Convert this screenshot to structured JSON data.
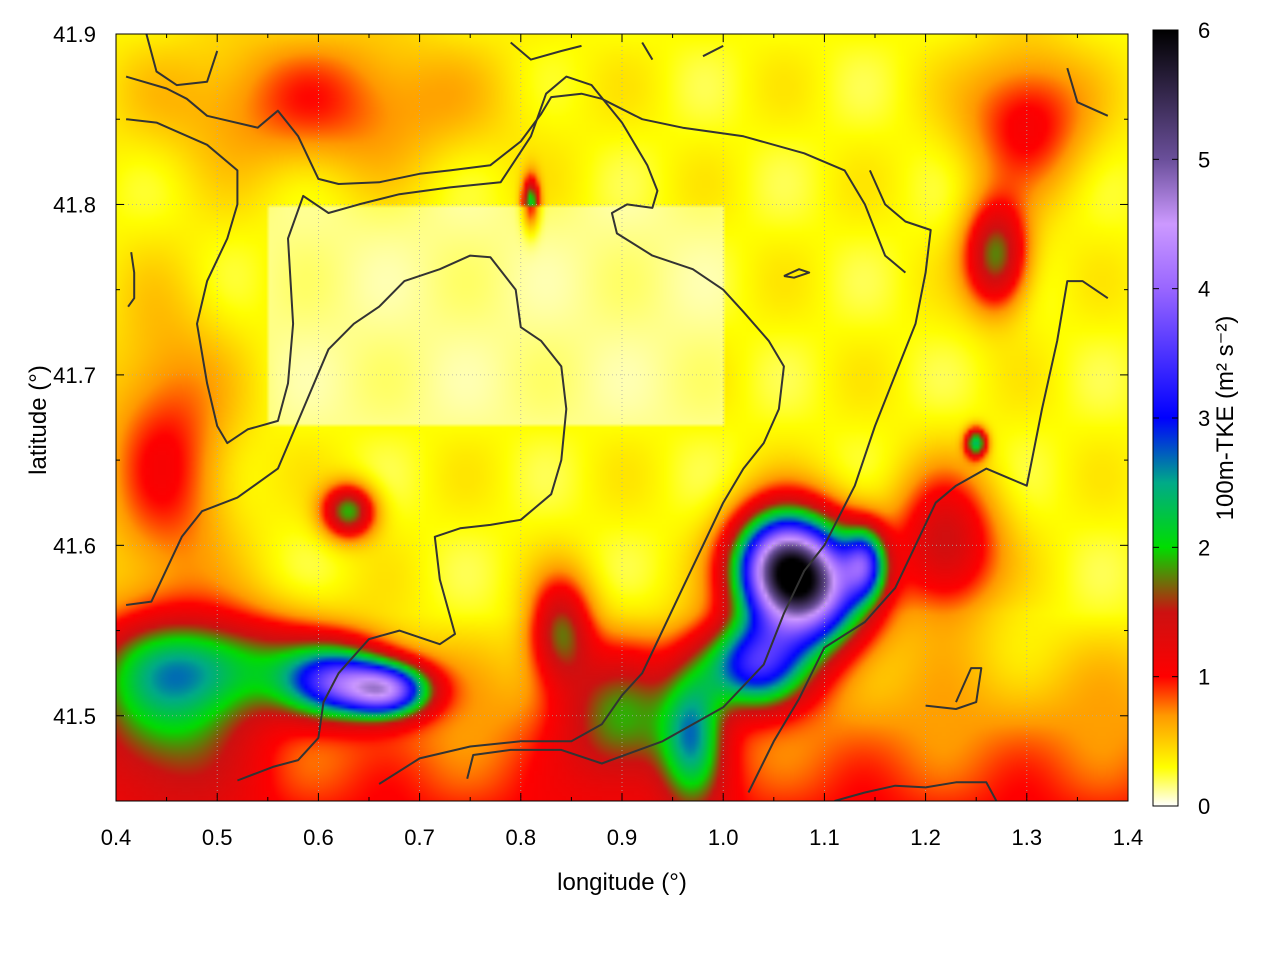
{
  "chart_data": {
    "type": "heatmap",
    "title": "",
    "xlabel": "longitude (°)",
    "ylabel": "latitude (°)",
    "colorbar_label": "100m-TKE (m² s⁻²)",
    "xlim": [
      0.4,
      1.4
    ],
    "ylim": [
      41.45,
      41.9
    ],
    "x_ticks": [
      0.4,
      0.5,
      0.6,
      0.7,
      0.8,
      0.9,
      1.0,
      1.1,
      1.2,
      1.3,
      1.4
    ],
    "x_tick_labels": [
      "0.4",
      "0.5",
      "0.6",
      "0.7",
      "0.8",
      "0.9",
      "1.0",
      "1.1",
      "1.2",
      "1.3",
      "1.4"
    ],
    "y_ticks": [
      41.5,
      41.6,
      41.7,
      41.8,
      41.9
    ],
    "y_tick_labels": [
      "41.5",
      "41.6",
      "41.7",
      "41.8",
      "41.9"
    ],
    "color_range": [
      0,
      6
    ],
    "cb_ticks": [
      0,
      1,
      2,
      3,
      4,
      5,
      6
    ],
    "cb_tick_labels": [
      "0",
      "1",
      "2",
      "3",
      "4",
      "5",
      "6"
    ],
    "colorscale": [
      [
        0.0,
        "#ffffff"
      ],
      [
        0.3,
        "#ffff00"
      ],
      [
        0.7,
        "#ff9900"
      ],
      [
        1.0,
        "#ff0000"
      ],
      [
        1.5,
        "#cc1111"
      ],
      [
        2.0,
        "#00dd00"
      ],
      [
        2.5,
        "#00aa88"
      ],
      [
        3.0,
        "#0000ff"
      ],
      [
        4.0,
        "#9966ff"
      ],
      [
        4.5,
        "#cc99ff"
      ],
      [
        5.0,
        "#6a4f9a"
      ],
      [
        6.0,
        "#000000"
      ]
    ],
    "grid": true,
    "grid_style": "dotted",
    "contour_color": "#333333",
    "field_features": [
      {
        "lon": 1.085,
        "lat": 41.575,
        "value": 4.2,
        "width": 0.055,
        "height": 0.035
      },
      {
        "lon": 1.055,
        "lat": 41.59,
        "value": 3.0,
        "width": 0.045,
        "height": 0.03
      },
      {
        "lon": 0.67,
        "lat": 41.515,
        "value": 3.0,
        "width": 0.04,
        "height": 0.015
      },
      {
        "lon": 0.62,
        "lat": 41.52,
        "value": 2.5,
        "width": 0.05,
        "height": 0.02
      },
      {
        "lon": 1.03,
        "lat": 41.53,
        "value": 2.6,
        "width": 0.05,
        "height": 0.025
      },
      {
        "lon": 1.14,
        "lat": 41.59,
        "value": 2.0,
        "width": 0.02,
        "height": 0.02
      },
      {
        "lon": 0.5,
        "lat": 41.53,
        "value": 1.4,
        "width": 0.12,
        "height": 0.03
      },
      {
        "lon": 0.45,
        "lat": 41.5,
        "value": 1.1,
        "width": 0.08,
        "height": 0.05
      },
      {
        "lon": 0.9,
        "lat": 41.5,
        "value": 1.2,
        "width": 0.06,
        "height": 0.04
      },
      {
        "lon": 0.97,
        "lat": 41.49,
        "value": 1.6,
        "width": 0.03,
        "height": 0.04
      },
      {
        "lon": 1.22,
        "lat": 41.6,
        "value": 1.2,
        "width": 0.05,
        "height": 0.04
      },
      {
        "lon": 1.27,
        "lat": 41.77,
        "value": 1.5,
        "width": 0.03,
        "height": 0.03
      },
      {
        "lon": 0.63,
        "lat": 41.62,
        "value": 1.6,
        "width": 0.025,
        "height": 0.015
      },
      {
        "lon": 0.81,
        "lat": 41.8,
        "value": 1.8,
        "width": 0.008,
        "height": 0.015
      },
      {
        "lon": 1.25,
        "lat": 41.66,
        "value": 2.0,
        "width": 0.01,
        "height": 0.008
      },
      {
        "lon": 0.84,
        "lat": 41.55,
        "value": 1.3,
        "width": 0.03,
        "height": 0.03
      },
      {
        "lon": 0.6,
        "lat": 41.86,
        "value": 0.6,
        "width": 0.15,
        "height": 0.04
      },
      {
        "lon": 1.3,
        "lat": 41.85,
        "value": 0.8,
        "width": 0.06,
        "height": 0.04
      },
      {
        "lon": 0.45,
        "lat": 41.65,
        "value": 0.7,
        "width": 0.06,
        "height": 0.08
      }
    ],
    "contours": [
      [
        [
          0.41,
          41.875
        ],
        [
          0.45,
          41.868
        ],
        [
          0.47,
          41.862
        ],
        [
          0.49,
          41.852
        ],
        [
          0.54,
          41.845
        ],
        [
          0.56,
          41.855
        ],
        [
          0.58,
          41.84
        ],
        [
          0.6,
          41.815
        ],
        [
          0.62,
          41.812
        ],
        [
          0.66,
          41.813
        ],
        [
          0.7,
          41.818
        ],
        [
          0.73,
          41.82
        ],
        [
          0.77,
          41.823
        ],
        [
          0.8,
          41.837
        ],
        [
          0.82,
          41.853
        ],
        [
          0.83,
          41.863
        ],
        [
          0.86,
          41.865
        ],
        [
          0.88,
          41.862
        ],
        [
          0.92,
          41.85
        ],
        [
          0.96,
          41.845
        ],
        [
          1.02,
          41.84
        ],
        [
          1.08,
          41.83
        ],
        [
          1.12,
          41.82
        ],
        [
          1.14,
          41.8
        ],
        [
          1.16,
          41.77
        ],
        [
          1.18,
          41.76
        ]
      ],
      [
        [
          0.43,
          41.9
        ],
        [
          0.44,
          41.878
        ],
        [
          0.46,
          41.87
        ],
        [
          0.49,
          41.872
        ],
        [
          0.5,
          41.89
        ]
      ],
      [
        [
          0.79,
          41.895
        ],
        [
          0.81,
          41.885
        ],
        [
          0.84,
          41.89
        ],
        [
          0.86,
          41.893
        ]
      ],
      [
        [
          0.92,
          41.895
        ],
        [
          0.93,
          41.885
        ]
      ],
      [
        [
          0.98,
          41.887
        ],
        [
          1.0,
          41.893
        ]
      ],
      [
        [
          1.34,
          41.88
        ],
        [
          1.35,
          41.86
        ],
        [
          1.38,
          41.852
        ]
      ],
      [
        [
          0.41,
          41.85
        ],
        [
          0.44,
          41.848
        ],
        [
          0.49,
          41.835
        ],
        [
          0.52,
          41.82
        ],
        [
          0.52,
          41.8
        ],
        [
          0.51,
          41.78
        ],
        [
          0.49,
          41.755
        ],
        [
          0.48,
          41.73
        ],
        [
          0.49,
          41.695
        ],
        [
          0.5,
          41.67
        ],
        [
          0.51,
          41.66
        ],
        [
          0.53,
          41.668
        ],
        [
          0.56,
          41.673
        ],
        [
          0.57,
          41.695
        ],
        [
          0.575,
          41.73
        ],
        [
          0.57,
          41.78
        ],
        [
          0.585,
          41.805
        ],
        [
          0.61,
          41.795
        ],
        [
          0.64,
          41.8
        ],
        [
          0.68,
          41.806
        ],
        [
          0.73,
          41.81
        ],
        [
          0.78,
          41.813
        ],
        [
          0.81,
          41.84
        ],
        [
          0.825,
          41.865
        ],
        [
          0.845,
          41.875
        ],
        [
          0.87,
          41.87
        ],
        [
          0.9,
          41.848
        ],
        [
          0.925,
          41.823
        ],
        [
          0.935,
          41.808
        ],
        [
          0.93,
          41.798
        ],
        [
          0.905,
          41.8
        ],
        [
          0.89,
          41.795
        ],
        [
          0.895,
          41.783
        ],
        [
          0.93,
          41.77
        ],
        [
          0.97,
          41.762
        ],
        [
          1.0,
          41.75
        ],
        [
          1.02,
          41.737
        ],
        [
          1.045,
          41.72
        ],
        [
          1.06,
          41.705
        ],
        [
          1.055,
          41.68
        ],
        [
          1.04,
          41.66
        ],
        [
          1.02,
          41.645
        ],
        [
          1.0,
          41.625
        ],
        [
          0.98,
          41.6
        ],
        [
          0.96,
          41.575
        ],
        [
          0.94,
          41.55
        ],
        [
          0.92,
          41.525
        ],
        [
          0.9,
          41.512
        ],
        [
          0.88,
          41.495
        ],
        [
          0.85,
          41.485
        ],
        [
          0.8,
          41.485
        ],
        [
          0.75,
          41.482
        ],
        [
          0.7,
          41.475
        ],
        [
          0.66,
          41.46
        ]
      ],
      [
        [
          0.41,
          41.565
        ],
        [
          0.435,
          41.567
        ],
        [
          0.465,
          41.605
        ],
        [
          0.485,
          41.62
        ],
        [
          0.52,
          41.628
        ],
        [
          0.56,
          41.645
        ],
        [
          0.585,
          41.68
        ],
        [
          0.61,
          41.715
        ],
        [
          0.635,
          41.73
        ],
        [
          0.66,
          41.74
        ],
        [
          0.685,
          41.755
        ],
        [
          0.72,
          41.762
        ],
        [
          0.75,
          41.77
        ],
        [
          0.77,
          41.769
        ],
        [
          0.795,
          41.75
        ],
        [
          0.8,
          41.728
        ],
        [
          0.82,
          41.72
        ],
        [
          0.84,
          41.705
        ],
        [
          0.845,
          41.68
        ],
        [
          0.84,
          41.65
        ],
        [
          0.83,
          41.63
        ],
        [
          0.8,
          41.615
        ],
        [
          0.77,
          41.612
        ],
        [
          0.74,
          41.61
        ],
        [
          0.715,
          41.605
        ],
        [
          0.72,
          41.58
        ],
        [
          0.735,
          41.548
        ],
        [
          0.72,
          41.542
        ],
        [
          0.68,
          41.55
        ],
        [
          0.65,
          41.545
        ],
        [
          0.62,
          41.525
        ],
        [
          0.605,
          41.508
        ],
        [
          0.6,
          41.487
        ],
        [
          0.58,
          41.474
        ],
        [
          0.555,
          41.47
        ],
        [
          0.52,
          41.462
        ]
      ],
      [
        [
          0.747,
          41.463
        ],
        [
          0.753,
          41.477
        ],
        [
          0.79,
          41.48
        ],
        [
          0.84,
          41.48
        ],
        [
          0.88,
          41.472
        ],
        [
          0.94,
          41.485
        ],
        [
          1.0,
          41.505
        ],
        [
          1.04,
          41.53
        ],
        [
          1.06,
          41.56
        ],
        [
          1.08,
          41.585
        ],
        [
          1.1,
          41.6
        ],
        [
          1.13,
          41.635
        ],
        [
          1.15,
          41.67
        ],
        [
          1.17,
          41.7
        ],
        [
          1.19,
          41.73
        ],
        [
          1.2,
          41.76
        ],
        [
          1.205,
          41.785
        ],
        [
          1.18,
          41.79
        ],
        [
          1.16,
          41.8
        ],
        [
          1.145,
          41.82
        ]
      ],
      [
        [
          1.025,
          41.455
        ],
        [
          1.05,
          41.485
        ],
        [
          1.075,
          41.51
        ],
        [
          1.1,
          41.54
        ],
        [
          1.14,
          41.555
        ],
        [
          1.17,
          41.575
        ],
        [
          1.19,
          41.6
        ],
        [
          1.21,
          41.625
        ],
        [
          1.23,
          41.635
        ],
        [
          1.26,
          41.645
        ],
        [
          1.28,
          41.64
        ],
        [
          1.3,
          41.635
        ],
        [
          1.305,
          41.65
        ],
        [
          1.315,
          41.68
        ],
        [
          1.33,
          41.72
        ],
        [
          1.34,
          41.755
        ],
        [
          1.355,
          41.755
        ],
        [
          1.38,
          41.745
        ]
      ],
      [
        [
          1.11,
          41.45
        ],
        [
          1.14,
          41.455
        ],
        [
          1.17,
          41.459
        ],
        [
          1.2,
          41.458
        ],
        [
          1.23,
          41.461
        ],
        [
          1.26,
          41.461
        ],
        [
          1.27,
          41.45
        ]
      ],
      [
        [
          1.2,
          41.506
        ],
        [
          1.23,
          41.504
        ],
        [
          1.25,
          41.508
        ],
        [
          1.255,
          41.528
        ],
        [
          1.245,
          41.528
        ],
        [
          1.23,
          41.508
        ]
      ],
      [
        [
          1.06,
          41.758
        ],
        [
          1.075,
          41.762
        ],
        [
          1.085,
          41.76
        ],
        [
          1.07,
          41.757
        ],
        [
          1.06,
          41.758
        ]
      ],
      [
        [
          0.415,
          41.772
        ],
        [
          0.418,
          41.76
        ],
        [
          0.418,
          41.745
        ],
        [
          0.412,
          41.74
        ]
      ]
    ]
  }
}
